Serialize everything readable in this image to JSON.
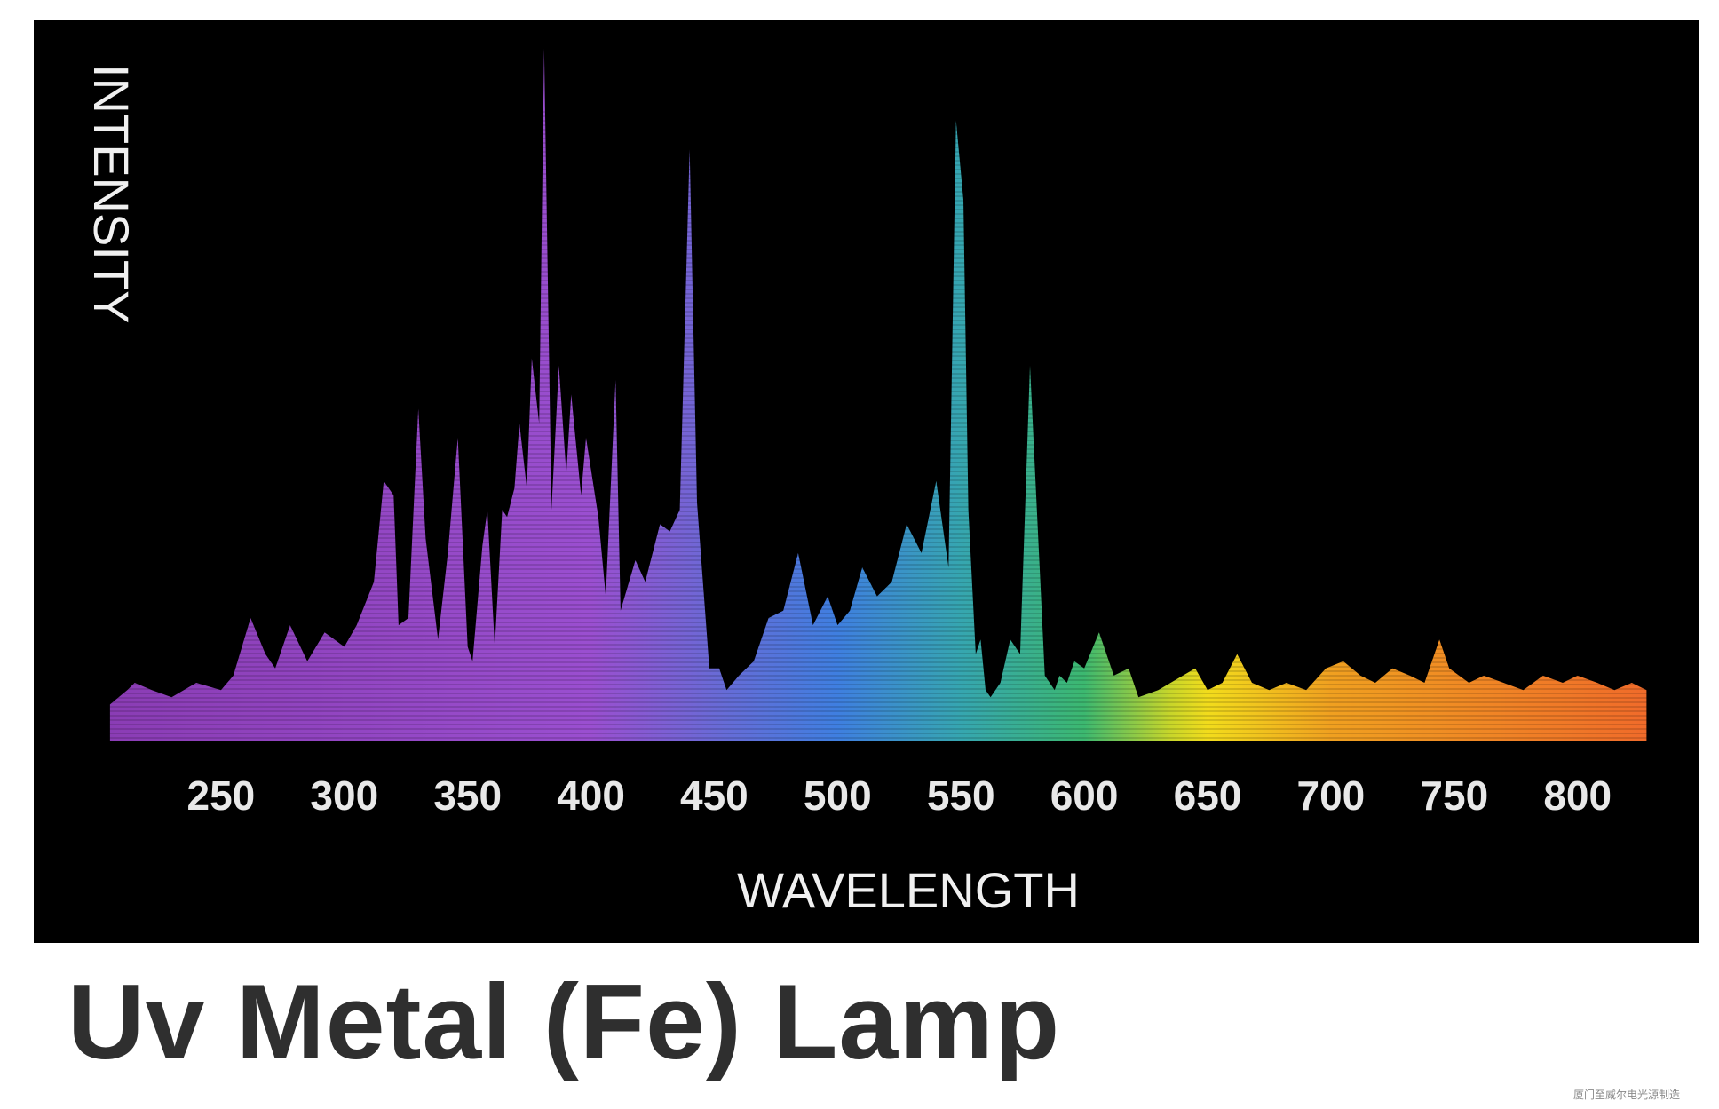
{
  "caption": "Uv Metal (Fe) Lamp",
  "watermark": "厦门至威尔电光源制造",
  "chart_data": {
    "type": "area",
    "xlabel": "WAVELENGTH",
    "ylabel": "INTENSITY",
    "xlim": [
      200,
      830
    ],
    "ylim": [
      0,
      100
    ],
    "xticks": [
      250,
      300,
      350,
      400,
      450,
      500,
      550,
      600,
      650,
      700,
      750,
      800
    ],
    "grid": false,
    "legend": "none",
    "background": "#000000",
    "gradient_stops": [
      {
        "wavelength": 200,
        "color": "#8a3cb4"
      },
      {
        "wavelength": 400,
        "color": "#9a4fd0"
      },
      {
        "wavelength": 450,
        "color": "#6a6ad6"
      },
      {
        "wavelength": 500,
        "color": "#3f7fe0"
      },
      {
        "wavelength": 550,
        "color": "#36a6b0"
      },
      {
        "wavelength": 600,
        "color": "#3cb870"
      },
      {
        "wavelength": 635,
        "color": "#c8d62a"
      },
      {
        "wavelength": 650,
        "color": "#f2dc1c"
      },
      {
        "wavelength": 700,
        "color": "#f0a020"
      },
      {
        "wavelength": 830,
        "color": "#f06a2a"
      }
    ],
    "x": [
      205,
      212,
      215,
      222,
      230,
      240,
      250,
      255,
      262,
      268,
      272,
      278,
      285,
      292,
      300,
      305,
      312,
      316,
      320,
      322,
      326,
      330,
      333,
      338,
      342,
      346,
      350,
      352,
      356,
      358,
      361,
      364,
      366,
      369,
      371,
      374,
      376,
      379,
      381,
      384,
      387,
      390,
      392,
      396,
      398,
      403,
      406,
      410,
      412,
      418,
      422,
      428,
      432,
      436,
      440,
      443,
      448,
      452,
      455,
      460,
      466,
      472,
      478,
      484,
      490,
      496,
      500,
      505,
      510,
      516,
      522,
      528,
      534,
      540,
      545,
      548,
      551,
      553,
      556,
      558,
      560,
      562,
      566,
      570,
      574,
      578,
      584,
      588,
      590,
      593,
      596,
      600,
      606,
      612,
      618,
      622,
      630,
      640,
      645,
      650,
      656,
      662,
      668,
      675,
      682,
      690,
      698,
      705,
      712,
      718,
      725,
      732,
      738,
      744,
      748,
      752,
      756,
      762,
      770,
      778,
      786,
      794,
      800,
      808,
      815,
      822,
      828
    ],
    "y": [
      5,
      7,
      8,
      7,
      6,
      8,
      7,
      9,
      17,
      12,
      10,
      16,
      11,
      15,
      13,
      16,
      22,
      36,
      34,
      16,
      17,
      46,
      28,
      14,
      26,
      42,
      13,
      11,
      27,
      32,
      13,
      32,
      31,
      35,
      44,
      35,
      53,
      44,
      96,
      32,
      52,
      37,
      48,
      34,
      42,
      31,
      20,
      50,
      18,
      25,
      22,
      30,
      29,
      32,
      82,
      33,
      10,
      10,
      7,
      9,
      11,
      17,
      18,
      26,
      16,
      20,
      16,
      18,
      24,
      20,
      22,
      30,
      26,
      36,
      24,
      86,
      75,
      32,
      12,
      14,
      7,
      6,
      8,
      14,
      12,
      52,
      9,
      7,
      9,
      8,
      11,
      10,
      15,
      9,
      10,
      6,
      7,
      9,
      10,
      7,
      8,
      12,
      8,
      7,
      8,
      7,
      10,
      11,
      9,
      8,
      10,
      9,
      8,
      14,
      10,
      9,
      8,
      9,
      8,
      7,
      9,
      8,
      9,
      8,
      7,
      8,
      7
    ]
  }
}
